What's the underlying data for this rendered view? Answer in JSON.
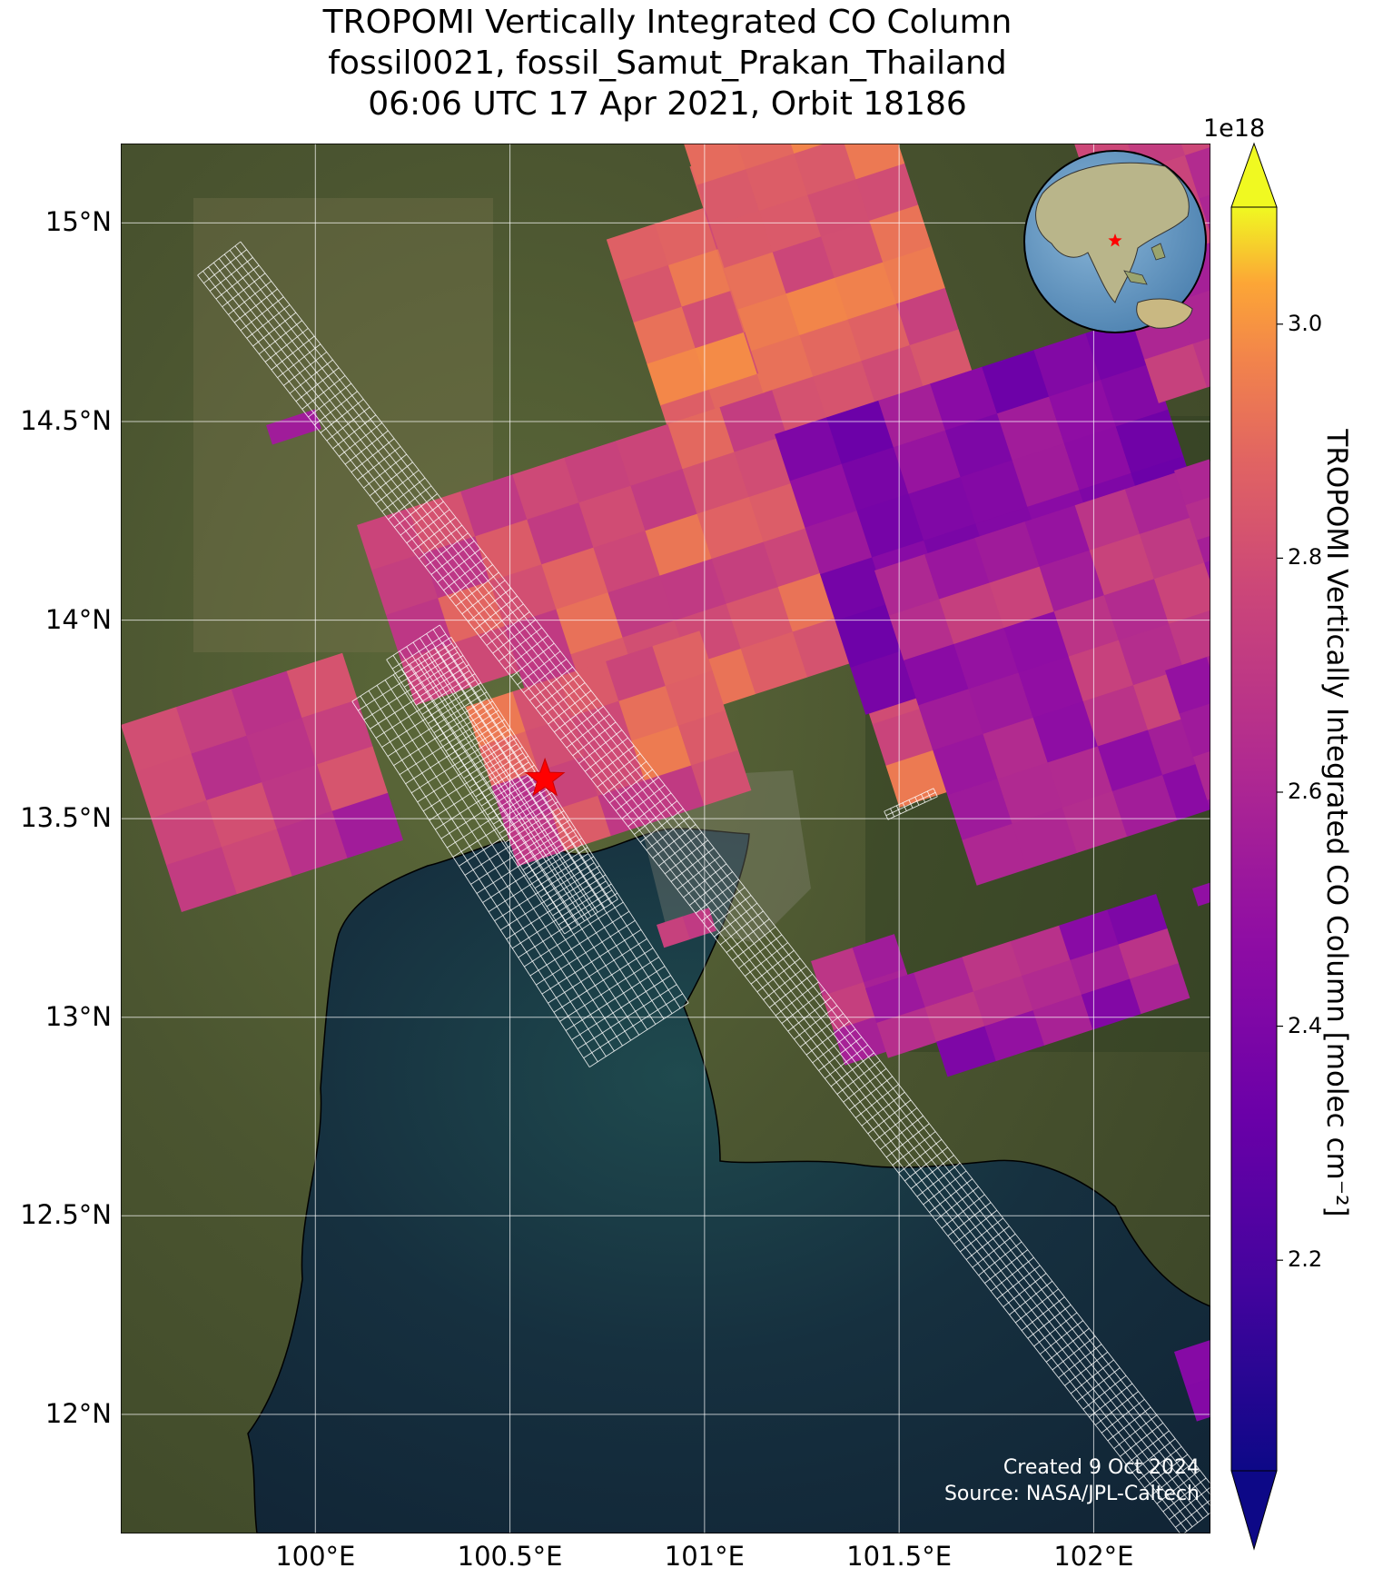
{
  "title": {
    "line1": "TROPOMI Vertically Integrated CO Column",
    "line2": "fossil0021, fossil_Samut_Prakan_Thailand",
    "line3": "06:06 UTC 17 Apr 2021, Orbit 18186"
  },
  "map": {
    "extent": {
      "lon_min": 99.5,
      "lon_max": 102.3,
      "lat_min": 11.7,
      "lat_max": 15.2
    },
    "lat_ticks": [
      {
        "value": 15.0,
        "label": "15°N"
      },
      {
        "value": 14.5,
        "label": "14.5°N"
      },
      {
        "value": 14.0,
        "label": "14°N"
      },
      {
        "value": 13.5,
        "label": "13.5°N"
      },
      {
        "value": 13.0,
        "label": "13°N"
      },
      {
        "value": 12.5,
        "label": "12.5°N"
      },
      {
        "value": 12.0,
        "label": "12°N"
      }
    ],
    "lon_ticks": [
      {
        "value": 100.0,
        "label": "100°E"
      },
      {
        "value": 100.5,
        "label": "100.5°E"
      },
      {
        "value": 101.0,
        "label": "101°E"
      },
      {
        "value": 101.5,
        "label": "101.5°E"
      },
      {
        "value": 102.0,
        "label": "102°E"
      }
    ],
    "gridlines": true,
    "basemap": "satellite imagery",
    "site_marker": {
      "lon": 100.59,
      "lat": 13.6,
      "symbol": "red star"
    },
    "inset_globe": {
      "placement": "top-right",
      "marker": "red star"
    },
    "colors": {
      "land": "#4f5a33",
      "water": "#132a3a",
      "grid": "#ffffff",
      "star": "#ff0000"
    }
  },
  "colorbar": {
    "multiplier": "1e18",
    "label": "TROPOMI Vertically Integrated CO Column [molec cm$^{-2}$]",
    "label_display": "TROPOMI Vertically Integrated CO Column [molec cm⁻²]",
    "vmin": 2.02,
    "vmax": 3.1,
    "extend": "both",
    "colormap": "plasma",
    "ticks": [
      {
        "value": 2.2,
        "label": "2.2"
      },
      {
        "value": 2.4,
        "label": "2.4"
      },
      {
        "value": 2.6,
        "label": "2.6"
      },
      {
        "value": 2.8,
        "label": "2.8"
      },
      {
        "value": 3.0,
        "label": "3.0"
      }
    ]
  },
  "credits": {
    "line1": "Created 9 Oct 2024",
    "line2": "Source: NASA/JPL-Caltech"
  }
}
